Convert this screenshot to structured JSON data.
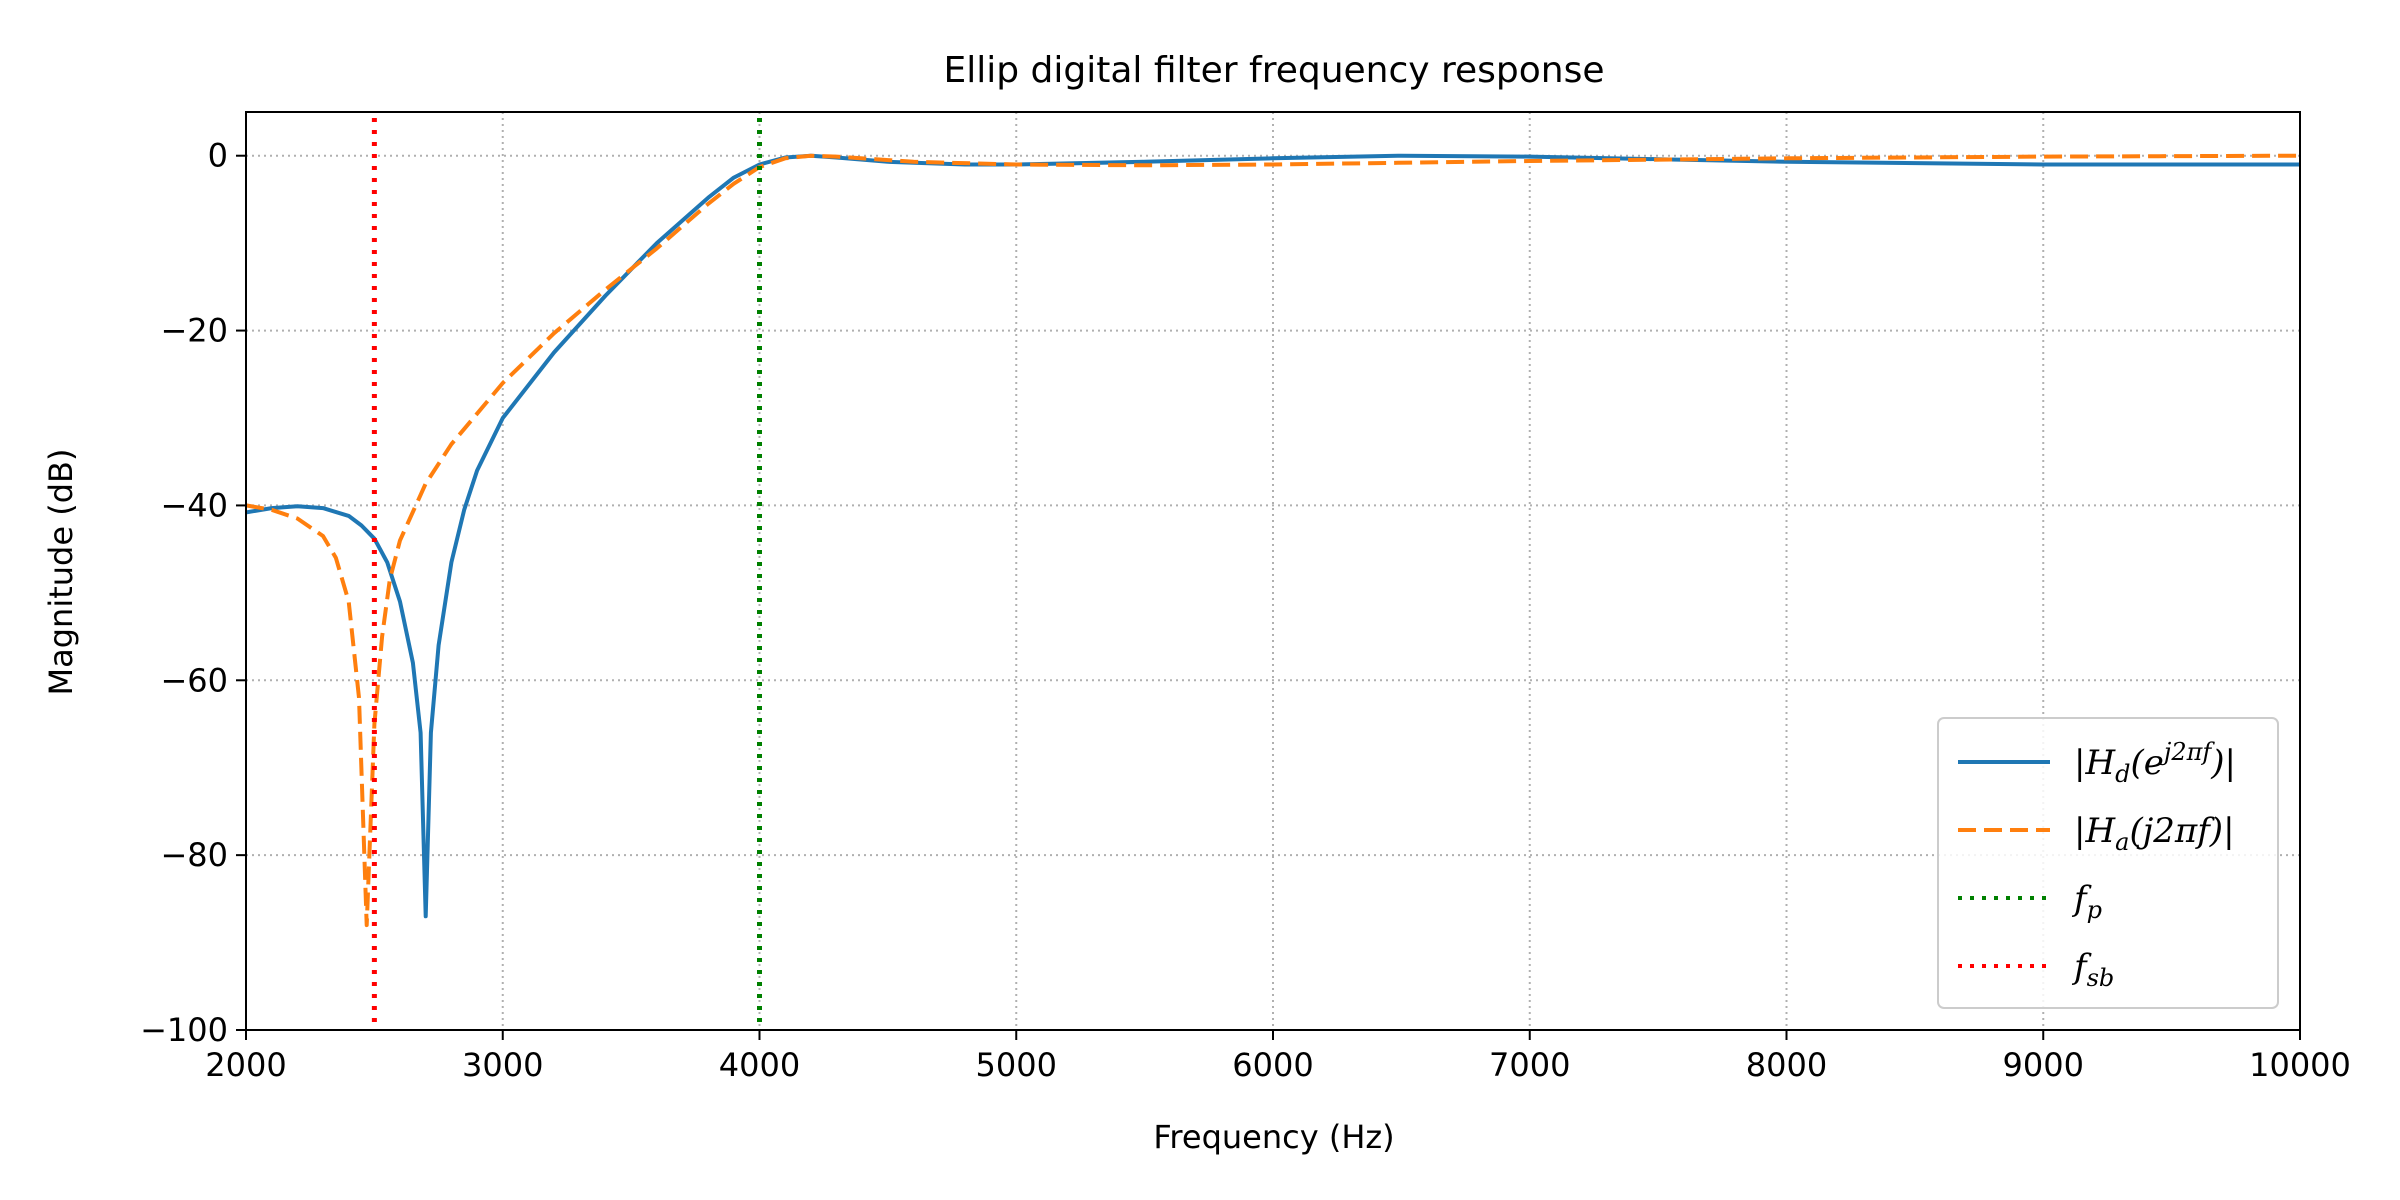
{
  "chart_data": {
    "type": "line",
    "title": "Ellip digital filter frequency response",
    "xlabel": "Frequency (Hz)",
    "ylabel": "Magnitude (dB)",
    "xlim": [
      2000,
      10000
    ],
    "ylim": [
      -100,
      5
    ],
    "xticks": [
      2000,
      3000,
      4000,
      5000,
      6000,
      7000,
      8000,
      9000,
      10000
    ],
    "xtick_labels": [
      "2000",
      "3000",
      "4000",
      "5000",
      "6000",
      "7000",
      "8000",
      "9000",
      "10000"
    ],
    "yticks": [
      -100,
      -80,
      -60,
      -40,
      -20,
      0
    ],
    "ytick_labels": [
      "−100",
      "−80",
      "−60",
      "−40",
      "−20",
      "0"
    ],
    "grid": true,
    "legend_position": "lower-right",
    "series": [
      {
        "name": "|Hd(e^j2πf)|",
        "color": "#1f77b4",
        "style": "solid",
        "points": [
          [
            2000,
            -40.8
          ],
          [
            2100,
            -40.3
          ],
          [
            2200,
            -40.1
          ],
          [
            2300,
            -40.3
          ],
          [
            2400,
            -41.2
          ],
          [
            2450,
            -42.3
          ],
          [
            2500,
            -43.8
          ],
          [
            2550,
            -46.5
          ],
          [
            2600,
            -51
          ],
          [
            2650,
            -58
          ],
          [
            2680,
            -66
          ],
          [
            2700,
            -87
          ],
          [
            2720,
            -66
          ],
          [
            2750,
            -56
          ],
          [
            2800,
            -46.5
          ],
          [
            2850,
            -40.5
          ],
          [
            2900,
            -36
          ],
          [
            3000,
            -30
          ],
          [
            3200,
            -22.5
          ],
          [
            3400,
            -16
          ],
          [
            3600,
            -10
          ],
          [
            3800,
            -4.8
          ],
          [
            3900,
            -2.5
          ],
          [
            4000,
            -1
          ],
          [
            4100,
            -0.2
          ],
          [
            4200,
            0
          ],
          [
            4300,
            -0.2
          ],
          [
            4500,
            -0.7
          ],
          [
            4800,
            -1
          ],
          [
            5000,
            -1
          ],
          [
            5500,
            -0.7
          ],
          [
            6000,
            -0.3
          ],
          [
            6500,
            0
          ],
          [
            7000,
            -0.1
          ],
          [
            7500,
            -0.4
          ],
          [
            8000,
            -0.7
          ],
          [
            9000,
            -1
          ],
          [
            10000,
            -1
          ]
        ]
      },
      {
        "name": "|Ha(j2πf)|",
        "color": "#ff7f0e",
        "style": "dashed",
        "points": [
          [
            2000,
            -40
          ],
          [
            2100,
            -40.5
          ],
          [
            2200,
            -41.5
          ],
          [
            2300,
            -43.5
          ],
          [
            2350,
            -46
          ],
          [
            2400,
            -51
          ],
          [
            2440,
            -62
          ],
          [
            2470,
            -88
          ],
          [
            2500,
            -65
          ],
          [
            2530,
            -55
          ],
          [
            2560,
            -48.5
          ],
          [
            2600,
            -44
          ],
          [
            2700,
            -37.5
          ],
          [
            2800,
            -33
          ],
          [
            3000,
            -26
          ],
          [
            3200,
            -20.3
          ],
          [
            3400,
            -15.3
          ],
          [
            3600,
            -10.6
          ],
          [
            3800,
            -5.5
          ],
          [
            3900,
            -3.2
          ],
          [
            4000,
            -1.3
          ],
          [
            4100,
            -0.3
          ],
          [
            4200,
            0
          ],
          [
            4300,
            -0.1
          ],
          [
            4600,
            -0.7
          ],
          [
            5000,
            -1
          ],
          [
            5500,
            -1.1
          ],
          [
            6000,
            -1
          ],
          [
            7000,
            -0.6
          ],
          [
            8000,
            -0.3
          ],
          [
            9000,
            -0.1
          ],
          [
            10000,
            0
          ]
        ]
      },
      {
        "name": "fp",
        "color": "#008000",
        "style": "dotted",
        "x": 4000
      },
      {
        "name": "fsb",
        "color": "#ff0000",
        "style": "dotted",
        "x": 2500
      }
    ],
    "legend": [
      {
        "base": "|",
        "main": "H",
        "sub": "d",
        "mid": "(e",
        "sup": "j2πf",
        "tail": ")|"
      },
      {
        "base": "|",
        "main": "H",
        "sub": "a",
        "mid": "(j2πf)|",
        "sup": "",
        "tail": ""
      },
      {
        "base": "",
        "main": "f",
        "sub": "p",
        "mid": "",
        "sup": "",
        "tail": ""
      },
      {
        "base": "",
        "main": "f",
        "sub": "sb",
        "mid": "",
        "sup": "",
        "tail": ""
      }
    ]
  }
}
